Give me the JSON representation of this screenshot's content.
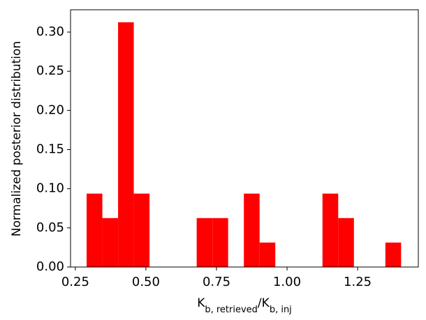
{
  "chart_data": {
    "type": "histogram",
    "xlabel": [
      "K",
      "b, retrieved",
      "/K",
      "b, inj"
    ],
    "ylabel": "Normalized posterior distribution",
    "bins": [
      0.29,
      0.3457,
      0.4014,
      0.4571,
      0.5128,
      0.5685,
      0.6242,
      0.6799,
      0.7356,
      0.7913,
      0.847,
      0.9027,
      0.9584,
      1.0141,
      1.0698,
      1.1255,
      1.1812,
      1.2369,
      1.2926,
      1.3483,
      1.404
    ],
    "values": [
      0.09375,
      0.0625,
      0.3125,
      0.09375,
      0,
      0,
      0,
      0.0625,
      0.0625,
      0,
      0.09375,
      0.03125,
      0,
      0,
      0,
      0.09375,
      0.0625,
      0,
      0,
      0.03125
    ],
    "color": "#ff0000",
    "xlim": [
      0.233,
      1.465
    ],
    "ylim": [
      0,
      0.3285
    ],
    "xticks": [
      0.25,
      {
        "value": 0.5,
        "label": "0.50"
      },
      0.75,
      {
        "value": 1.0,
        "label": "1.00"
      },
      1.25
    ],
    "yticks": [
      {
        "value": 0,
        "label": "0.00"
      },
      {
        "value": 0.05,
        "label": "0.05"
      },
      {
        "value": 0.1,
        "label": "0.10"
      },
      {
        "value": 0.15,
        "label": "0.15"
      },
      {
        "value": 0.2,
        "label": "0.20"
      },
      {
        "value": 0.25,
        "label": "0.25"
      },
      {
        "value": 0.3,
        "label": "0.30"
      }
    ]
  }
}
